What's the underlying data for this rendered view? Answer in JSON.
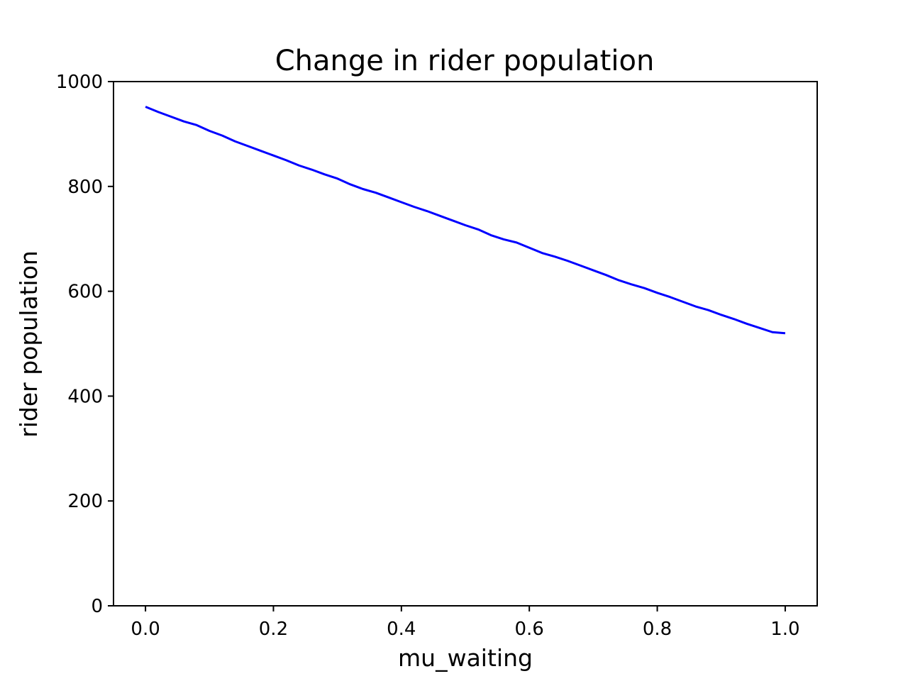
{
  "chart_data": {
    "type": "line",
    "title": "Change in rider population",
    "xlabel": "mu_waiting",
    "ylabel": "rider population",
    "xlim": [
      -0.05,
      1.05
    ],
    "ylim": [
      0,
      1000
    ],
    "xticks": [
      0.0,
      0.2,
      0.4,
      0.6,
      0.8,
      1.0
    ],
    "xtick_labels": [
      "0.0",
      "0.2",
      "0.4",
      "0.6",
      "0.8",
      "1.0"
    ],
    "yticks": [
      0,
      200,
      400,
      600,
      800,
      1000
    ],
    "ytick_labels": [
      "0",
      "200",
      "400",
      "600",
      "800",
      "1000"
    ],
    "grid": false,
    "series": [
      {
        "color": "#0000ff",
        "x": [
          0.0,
          0.02,
          0.04,
          0.06,
          0.08,
          0.1,
          0.12,
          0.14,
          0.16,
          0.18,
          0.2,
          0.22,
          0.24,
          0.26,
          0.28,
          0.3,
          0.32,
          0.34,
          0.36,
          0.38,
          0.4,
          0.42,
          0.44,
          0.46,
          0.48,
          0.5,
          0.52,
          0.54,
          0.56,
          0.58,
          0.6,
          0.62,
          0.64,
          0.66,
          0.68,
          0.7,
          0.72,
          0.74,
          0.76,
          0.78,
          0.8,
          0.82,
          0.84,
          0.86,
          0.88,
          0.9,
          0.92,
          0.94,
          0.96,
          0.98,
          1.0
        ],
        "y": [
          952,
          942,
          933,
          924,
          917,
          906,
          897,
          886,
          877,
          868,
          859,
          850,
          840,
          832,
          823,
          815,
          804,
          795,
          788,
          779,
          770,
          761,
          753,
          744,
          735,
          726,
          718,
          707,
          699,
          693,
          683,
          673,
          666,
          658,
          649,
          640,
          631,
          621,
          613,
          606,
          597,
          589,
          580,
          571,
          564,
          555,
          547,
          538,
          530,
          522,
          520
        ]
      }
    ]
  }
}
